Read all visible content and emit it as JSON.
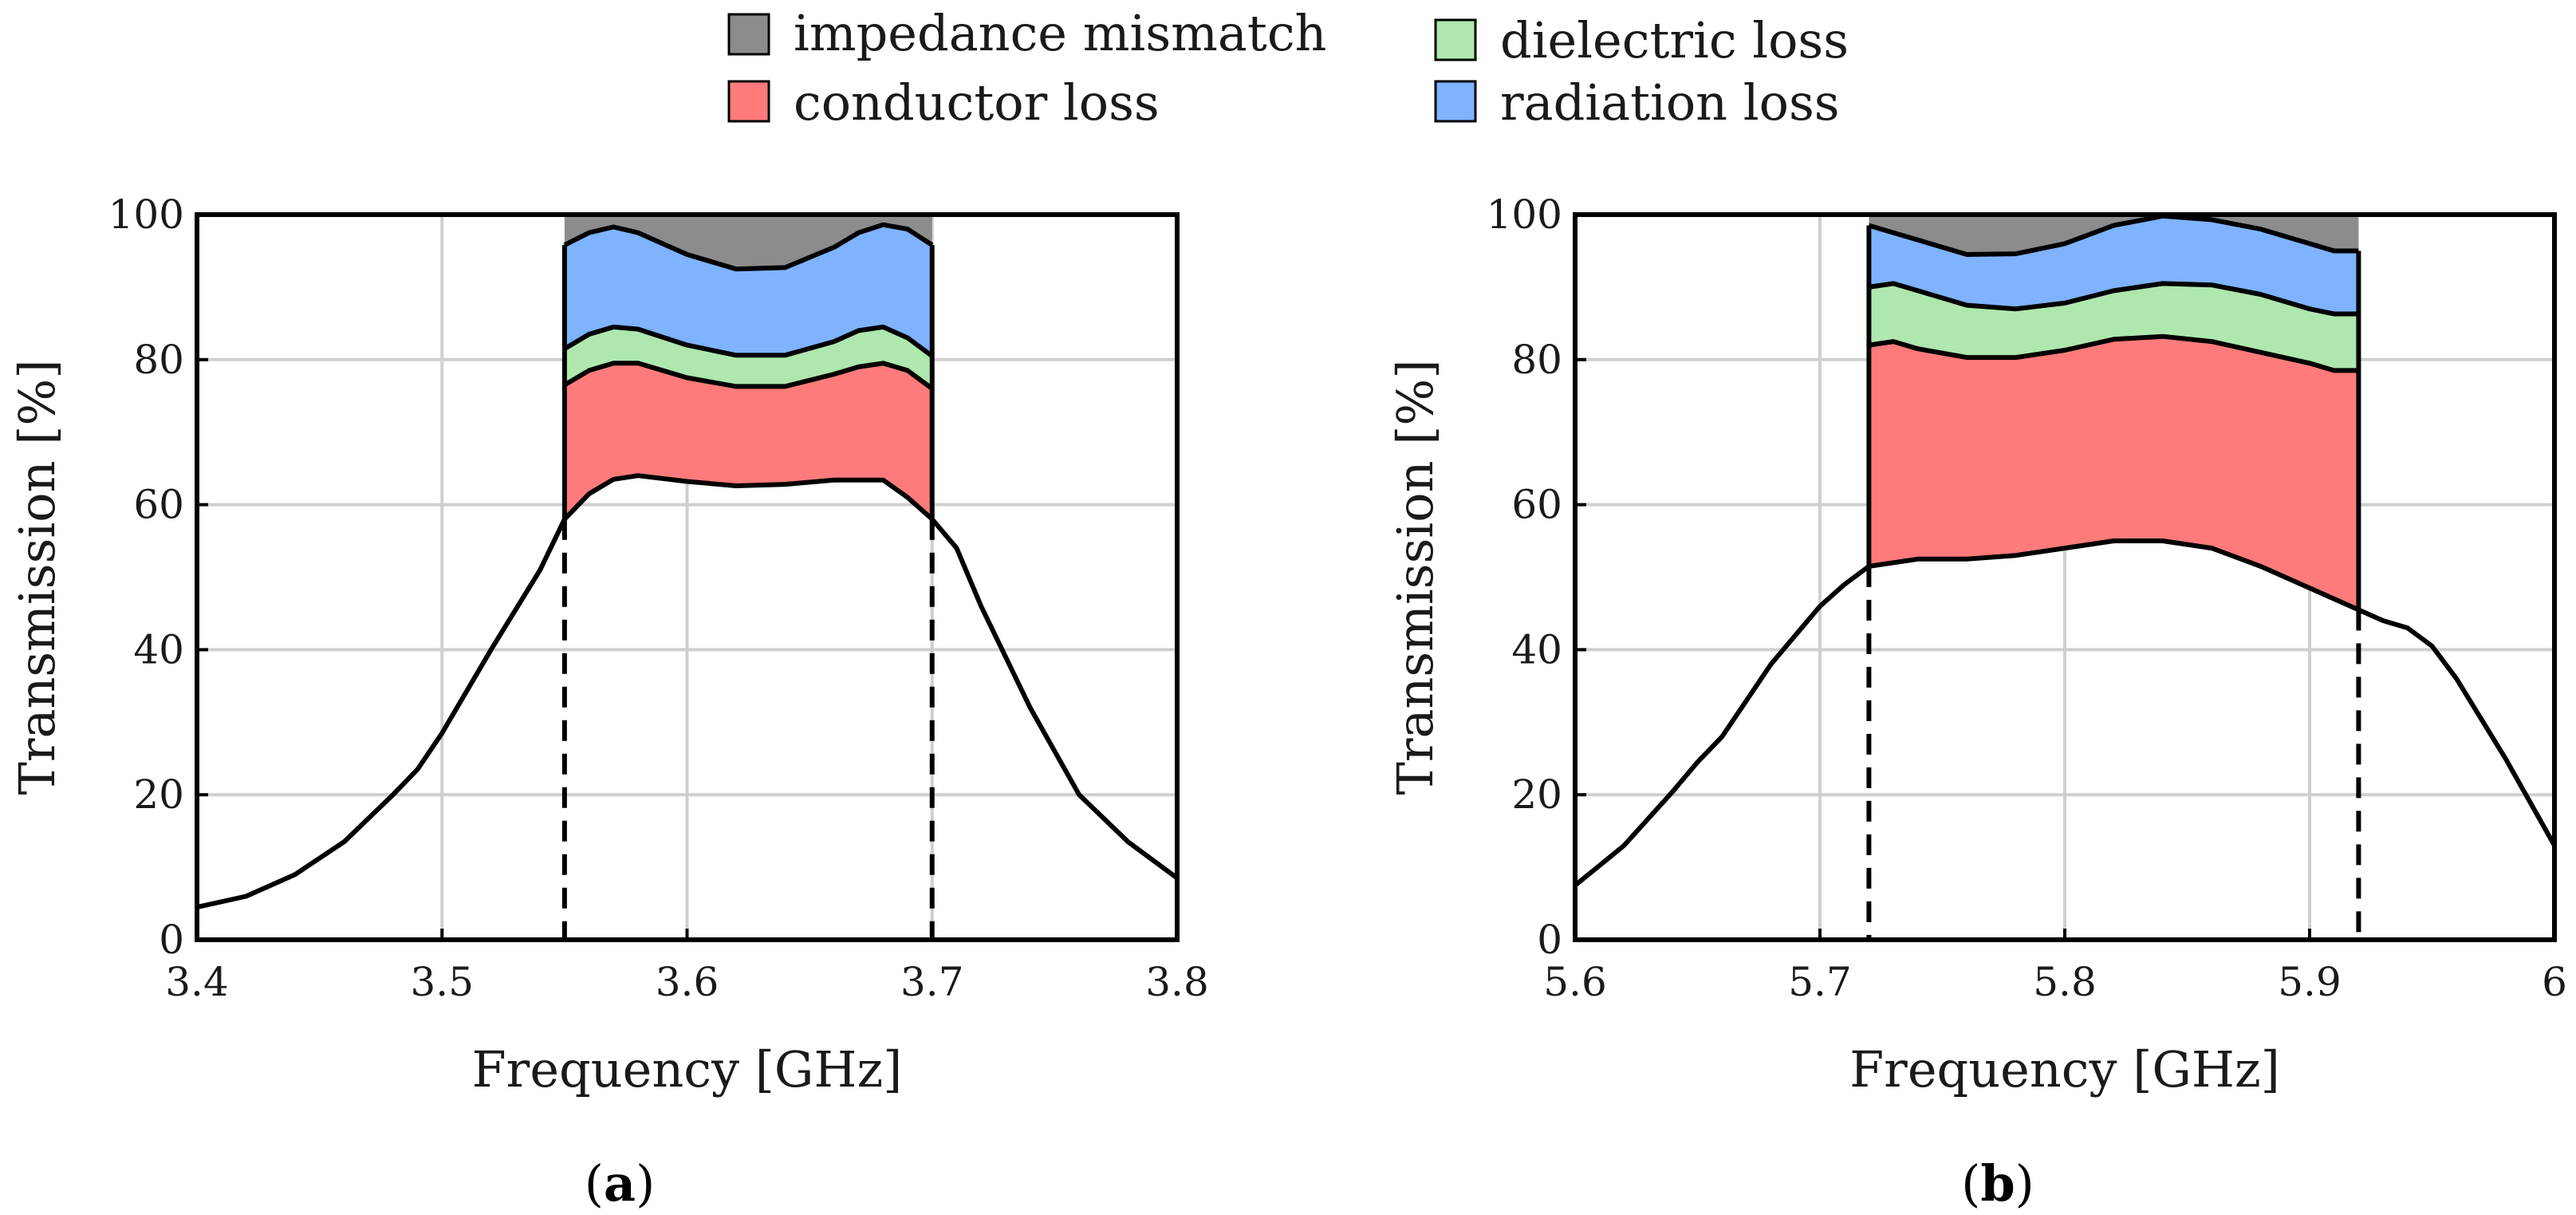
{
  "legend": [
    {
      "key": "impedance",
      "label": "impedance mismatch",
      "color": "#8c8c8c"
    },
    {
      "key": "dielectric",
      "label": "dielectric loss",
      "color": "#aee8ae"
    },
    {
      "key": "conductor",
      "label": "conductor loss",
      "color": "#ff7b7b"
    },
    {
      "key": "radiation",
      "label": "radiation loss",
      "color": "#7fb3ff"
    }
  ],
  "chart_data": [
    {
      "panel": "a",
      "caption_open": "(",
      "caption_letter": "a",
      "caption_close": ")",
      "type": "area",
      "xlabel": "Frequency [GHz]",
      "ylabel": "Transmission [%]",
      "xlim": [
        3.4,
        3.8
      ],
      "ylim": [
        0,
        100
      ],
      "xticks": [
        "3.4",
        "3.5",
        "3.6",
        "3.7",
        "3.8"
      ],
      "xtick_values": [
        3.4,
        3.5,
        3.6,
        3.7,
        3.8
      ],
      "yticks": [
        "0",
        "20",
        "40",
        "60",
        "80",
        "100"
      ],
      "ytick_values": [
        0,
        20,
        40,
        60,
        80,
        100
      ],
      "band": [
        3.55,
        3.7
      ],
      "transmission": {
        "x": [
          3.4,
          3.42,
          3.44,
          3.46,
          3.48,
          3.49,
          3.5,
          3.52,
          3.54,
          3.55,
          3.56,
          3.57,
          3.58,
          3.6,
          3.62,
          3.64,
          3.66,
          3.68,
          3.69,
          3.7,
          3.71,
          3.72,
          3.74,
          3.76,
          3.78,
          3.8
        ],
        "y": [
          4.5,
          6,
          9,
          13.5,
          20,
          23.5,
          28.5,
          40,
          51,
          58,
          61.5,
          63.5,
          64,
          63.2,
          62.6,
          62.8,
          63.4,
          63.4,
          61,
          58,
          54,
          46,
          32,
          20,
          13.5,
          8.5
        ]
      },
      "layers": {
        "x": [
          3.55,
          3.56,
          3.57,
          3.58,
          3.6,
          3.62,
          3.64,
          3.66,
          3.67,
          3.68,
          3.69,
          3.7
        ],
        "conductor_top": [
          76.5,
          78.5,
          79.5,
          79.5,
          77.5,
          76.3,
          76.3,
          78,
          79,
          79.5,
          78.5,
          76
        ],
        "dielectric_top": [
          81.5,
          83.5,
          84.5,
          84.2,
          82,
          80.6,
          80.6,
          82.5,
          84,
          84.5,
          83,
          80.5
        ],
        "radiation_top": [
          95.8,
          97.5,
          98.3,
          97.5,
          94.5,
          92.5,
          92.7,
          95.5,
          97.5,
          98.6,
          98,
          95.8
        ],
        "impedance_top": [
          100,
          100,
          100,
          100,
          100,
          100,
          100,
          100,
          100,
          100,
          100,
          100
        ]
      }
    },
    {
      "panel": "b",
      "caption_open": "(",
      "caption_letter": "b",
      "caption_close": ")",
      "type": "area",
      "xlabel": "Frequency [GHz]",
      "ylabel": "Transmission [%]",
      "xlim": [
        5.6,
        6.0
      ],
      "ylim": [
        0,
        100
      ],
      "xticks": [
        "5.6",
        "5.7",
        "5.8",
        "5.9",
        "6"
      ],
      "xtick_values": [
        5.6,
        5.7,
        5.8,
        5.9,
        6.0
      ],
      "yticks": [
        "0",
        "20",
        "40",
        "60",
        "80",
        "100"
      ],
      "ytick_values": [
        0,
        20,
        40,
        60,
        80,
        100
      ],
      "band": [
        5.72,
        5.92
      ],
      "transmission": {
        "x": [
          5.6,
          5.62,
          5.64,
          5.65,
          5.66,
          5.68,
          5.7,
          5.71,
          5.72,
          5.74,
          5.76,
          5.78,
          5.8,
          5.82,
          5.84,
          5.86,
          5.88,
          5.9,
          5.92,
          5.93,
          5.94,
          5.95,
          5.96,
          5.98,
          6.0
        ],
        "y": [
          7.5,
          13,
          20.5,
          24.5,
          28,
          38,
          46,
          49,
          51.5,
          52.5,
          52.5,
          53,
          54,
          55,
          55,
          54,
          51.5,
          48.5,
          45.5,
          44,
          43,
          40.5,
          36,
          25,
          13
        ]
      },
      "layers": {
        "x": [
          5.72,
          5.73,
          5.74,
          5.76,
          5.78,
          5.8,
          5.82,
          5.84,
          5.86,
          5.88,
          5.9,
          5.91,
          5.92
        ],
        "conductor_top": [
          82,
          82.5,
          81.5,
          80.3,
          80.3,
          81.3,
          82.8,
          83.2,
          82.5,
          81,
          79.5,
          78.5,
          78.5
        ],
        "dielectric_top": [
          90,
          90.5,
          89.5,
          87.5,
          87,
          87.8,
          89.5,
          90.5,
          90.3,
          89,
          87,
          86.3,
          86.3
        ],
        "radiation_top": [
          98.5,
          97.5,
          96.5,
          94.5,
          94.6,
          96,
          98.5,
          99.8,
          99.3,
          98,
          96,
          95,
          95
        ],
        "impedance_top": [
          100,
          100,
          100,
          100,
          100,
          100,
          100,
          100,
          100,
          100,
          100,
          100,
          100
        ]
      }
    }
  ]
}
